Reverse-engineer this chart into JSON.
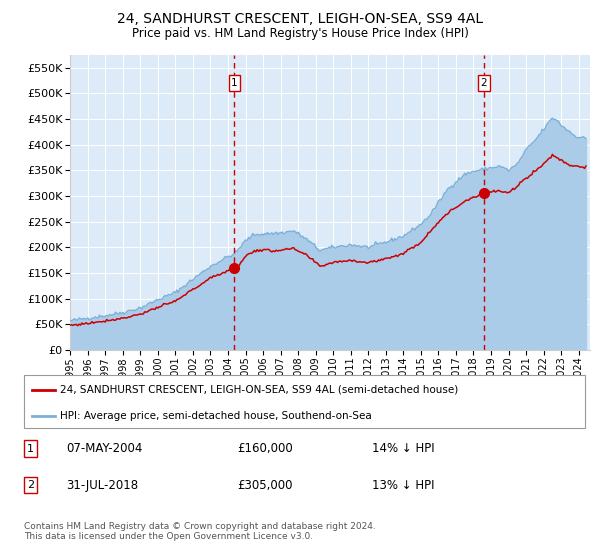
{
  "title": "24, SANDHURST CRESCENT, LEIGH-ON-SEA, SS9 4AL",
  "subtitle": "Price paid vs. HM Land Registry's House Price Index (HPI)",
  "legend_line1": "24, SANDHURST CRESCENT, LEIGH-ON-SEA, SS9 4AL (semi-detached house)",
  "legend_line2": "HPI: Average price, semi-detached house, Southend-on-Sea",
  "footnote": "Contains HM Land Registry data © Crown copyright and database right 2024.\nThis data is licensed under the Open Government Licence v3.0.",
  "sale1_date": "07-MAY-2004",
  "sale1_price": 160000,
  "sale1_pct": "14% ↓ HPI",
  "sale2_date": "31-JUL-2018",
  "sale2_price": 305000,
  "sale2_pct": "13% ↓ HPI",
  "hpi_color": "#aacce8",
  "hpi_line_color": "#7ab0d8",
  "price_color": "#cc0000",
  "dashed_color": "#cc0000",
  "bg_color": "#ddeaf7",
  "grid_color": "#ffffff",
  "ylim": [
    0,
    575000
  ],
  "xlim_start": 1995.0,
  "xlim_end": 2024.67,
  "sale1_year": 2004.37,
  "sale2_year": 2018.58,
  "hpi_anchors_t": [
    1995.0,
    1996.0,
    1997.0,
    1998.0,
    1999.0,
    2000.0,
    2001.0,
    2002.0,
    2003.0,
    2004.0,
    2004.37,
    2005.0,
    2005.5,
    2006.5,
    2007.0,
    2007.75,
    2008.5,
    2009.25,
    2010.0,
    2011.0,
    2012.0,
    2013.0,
    2014.0,
    2015.0,
    2015.5,
    2016.5,
    2017.0,
    2017.5,
    2018.0,
    2018.58,
    2019.0,
    2019.5,
    2020.0,
    2020.5,
    2021.0,
    2021.5,
    2022.0,
    2022.5,
    2022.75,
    2023.0,
    2023.5,
    2023.75,
    2024.0,
    2024.4
  ],
  "hpi_anchors_v": [
    57000,
    62000,
    67000,
    73000,
    82000,
    98000,
    112000,
    138000,
    163000,
    182000,
    187000,
    213000,
    225000,
    227000,
    228000,
    232000,
    215000,
    194000,
    200000,
    205000,
    200000,
    210000,
    222000,
    245000,
    262000,
    312000,
    328000,
    342000,
    348000,
    352000,
    355000,
    358000,
    350000,
    362000,
    390000,
    408000,
    430000,
    452000,
    448000,
    438000,
    425000,
    418000,
    415000,
    412000
  ],
  "price_anchors_t": [
    1995.0,
    1996.0,
    1997.0,
    1998.0,
    1999.0,
    2000.0,
    2001.0,
    2002.0,
    2003.0,
    2004.0,
    2004.37,
    2004.6,
    2005.0,
    2005.5,
    2006.0,
    2006.5,
    2007.0,
    2007.75,
    2008.5,
    2009.25,
    2010.0,
    2011.0,
    2012.0,
    2013.0,
    2014.0,
    2015.0,
    2016.0,
    2016.5,
    2017.0,
    2017.5,
    2018.0,
    2018.58,
    2019.0,
    2019.5,
    2020.0,
    2021.0,
    2022.0,
    2022.5,
    2023.0,
    2023.5,
    2024.0,
    2024.4
  ],
  "price_anchors_v": [
    48000,
    52000,
    57000,
    62000,
    70000,
    83000,
    95000,
    118000,
    140000,
    155000,
    160000,
    162000,
    183000,
    193000,
    195000,
    193000,
    195000,
    197000,
    184000,
    163000,
    171000,
    175000,
    170000,
    178000,
    188000,
    210000,
    250000,
    265000,
    278000,
    290000,
    298000,
    305000,
    308000,
    310000,
    305000,
    335000,
    362000,
    380000,
    370000,
    360000,
    358000,
    356000
  ]
}
